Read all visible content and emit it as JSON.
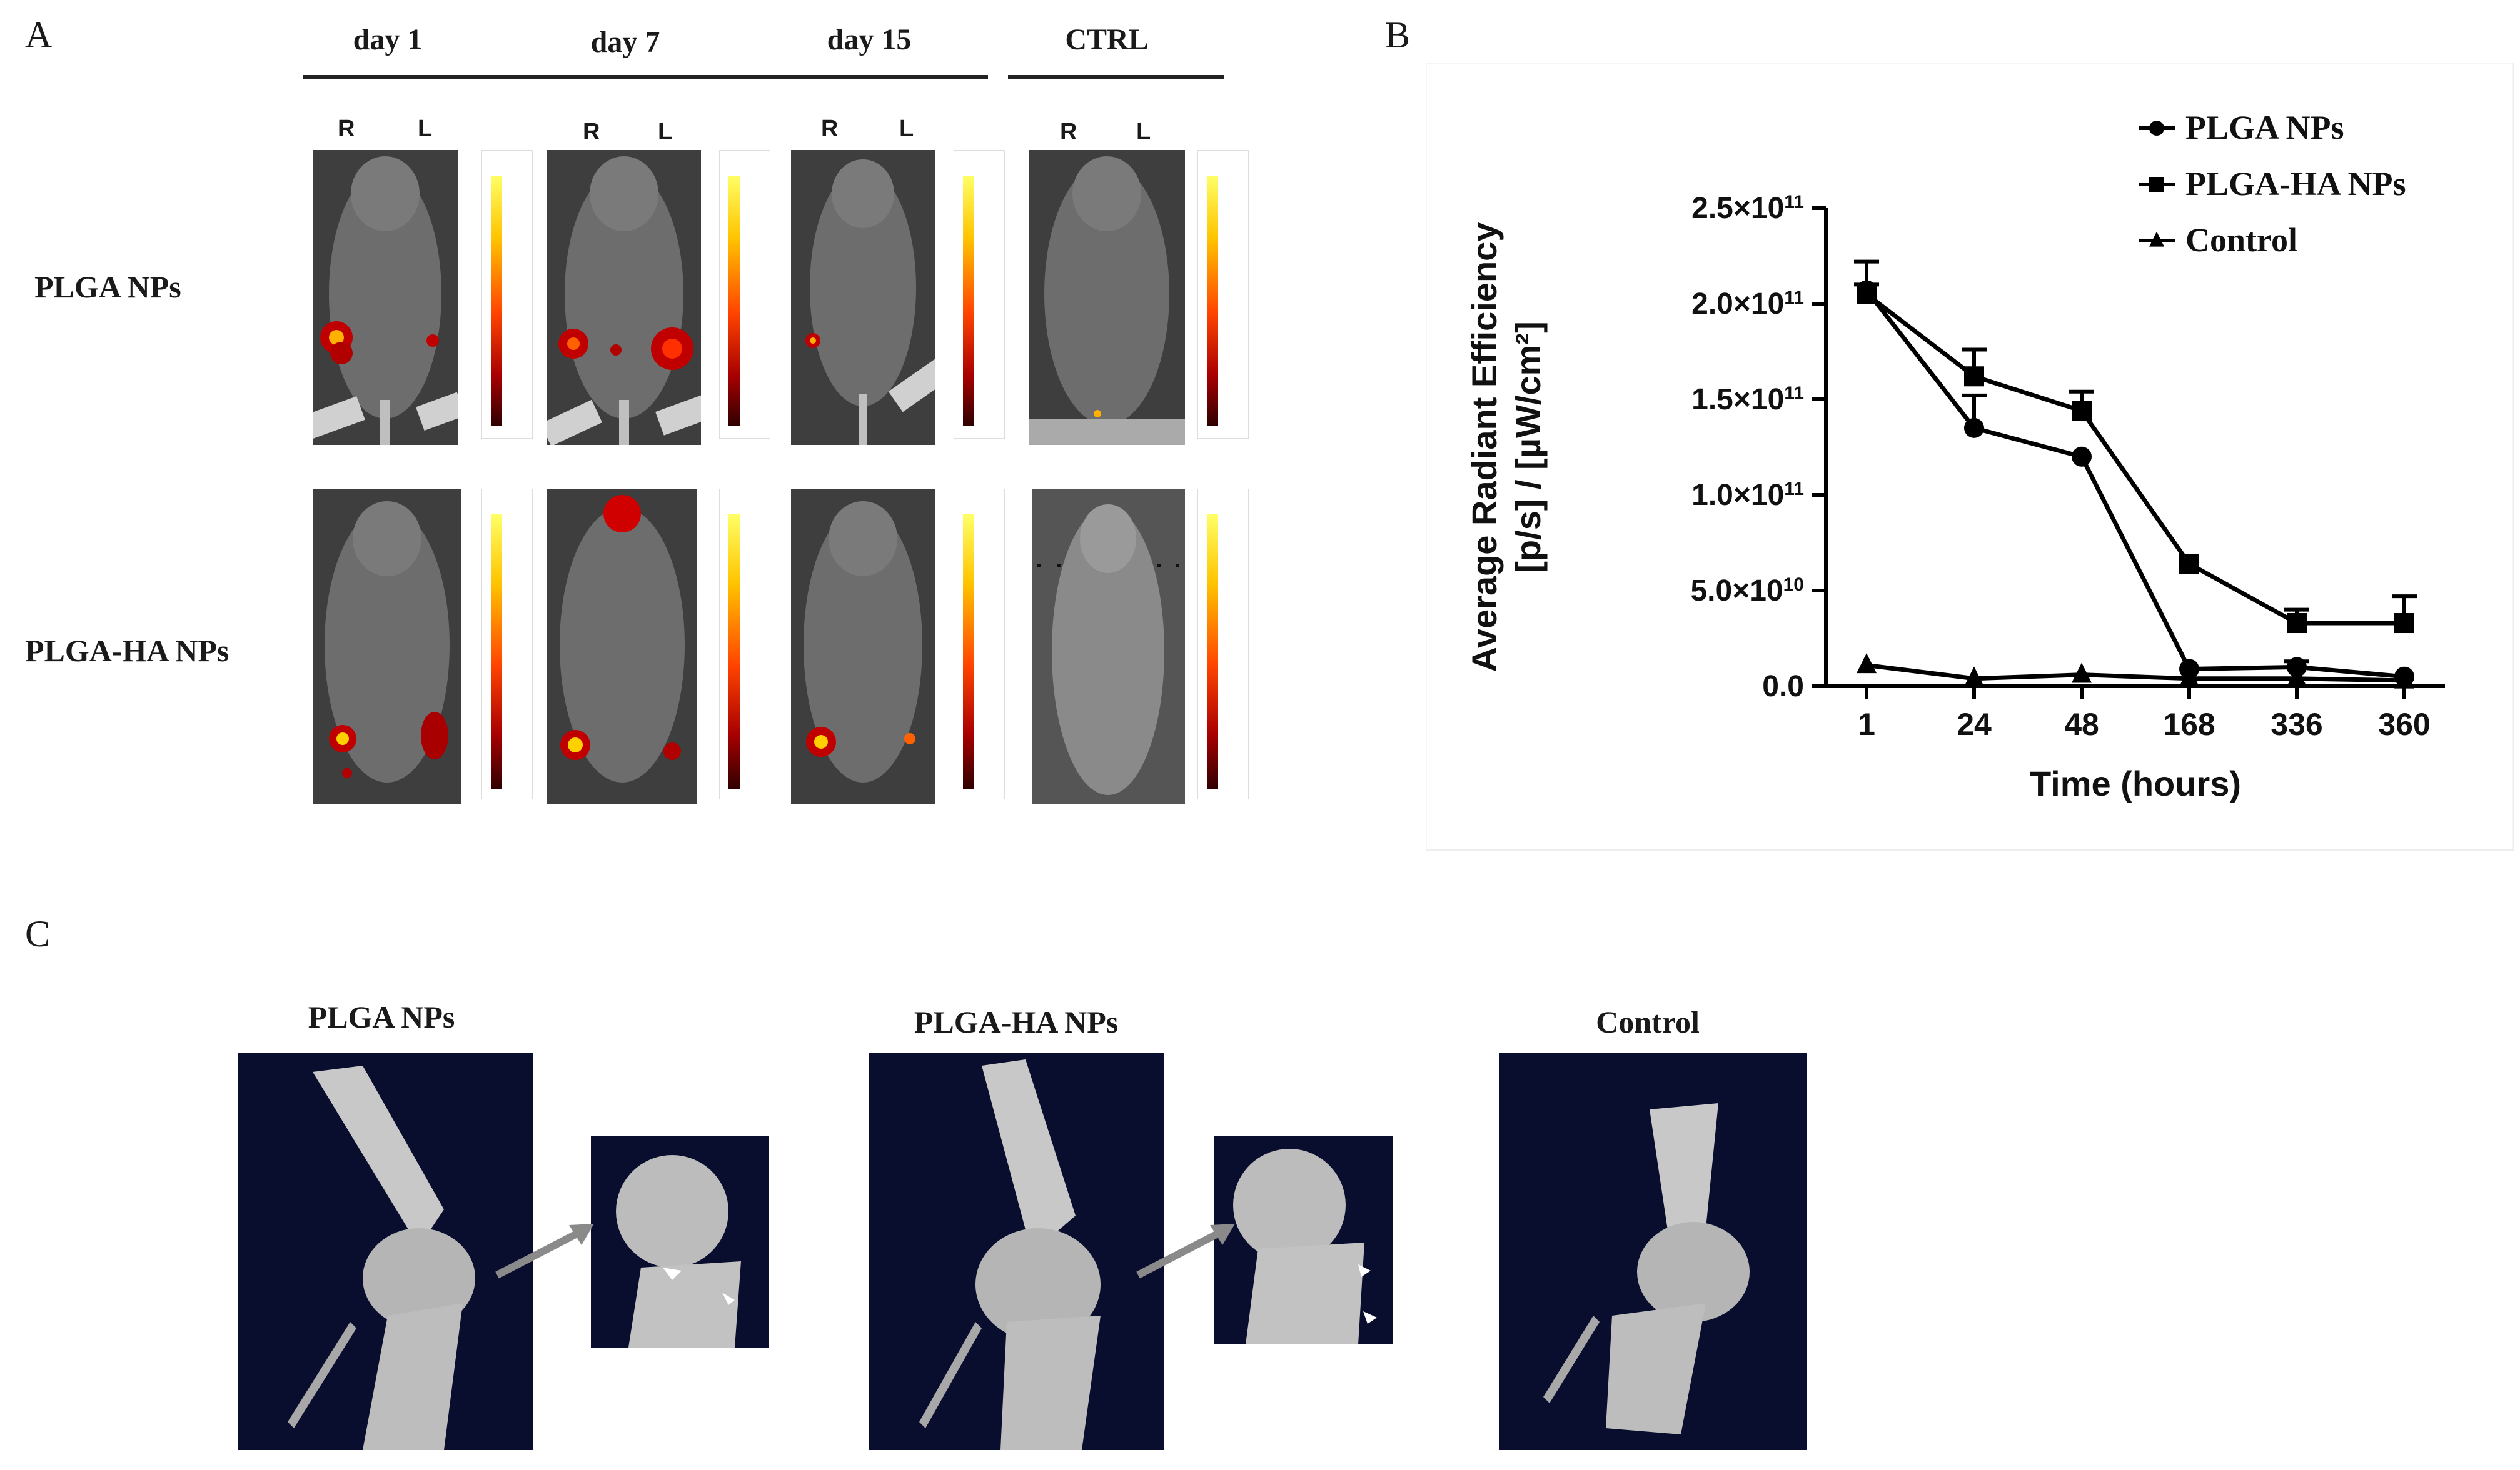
{
  "panels": {
    "a": "A",
    "b": "B",
    "c": "C"
  },
  "panel_a": {
    "columns": [
      "day 1",
      "day 7",
      "day 15",
      "CTRL"
    ],
    "sides": {
      "right": "R",
      "left": "L"
    },
    "rows": [
      "PLGA NPs",
      "PLGA-HA NPs"
    ]
  },
  "panel_c": {
    "labels": [
      "PLGA NPs",
      "PLGA-HA NPs",
      "Control"
    ]
  },
  "chart_data": {
    "type": "line",
    "xlabel": "Time (hours)",
    "ylabel_line1": "Average Radiant Efficiency",
    "ylabel_line2": "[p/s] / [µW/cm²]",
    "categories": [
      "1",
      "24",
      "48",
      "168",
      "336",
      "360"
    ],
    "y_ticks": [
      {
        "value": 0,
        "base": "0.0",
        "exp": ""
      },
      {
        "value": 50000000000,
        "base": "5.0×10",
        "exp": "10"
      },
      {
        "value": 100000000000,
        "base": "1.0×10",
        "exp": "11"
      },
      {
        "value": 150000000000,
        "base": "1.5×10",
        "exp": "11"
      },
      {
        "value": 200000000000,
        "base": "2.0×10",
        "exp": "11"
      },
      {
        "value": 250000000000,
        "base": "2.5×10",
        "exp": "11"
      }
    ],
    "ylim": [
      0,
      250000000000
    ],
    "legend_position": "top-right",
    "series": [
      {
        "name": "PLGA NPs",
        "marker": "circle",
        "values": [
          207000000000,
          135000000000,
          120000000000,
          9000000000,
          10000000000,
          5000000000
        ],
        "errors": [
          15000000000,
          17000000000,
          0,
          0,
          3000000000,
          0
        ]
      },
      {
        "name": "PLGA-HA NPs",
        "marker": "square",
        "values": [
          205000000000,
          162000000000,
          144000000000,
          64000000000,
          33000000000,
          33000000000
        ],
        "errors": [
          5000000000,
          14000000000,
          10000000000,
          0,
          7000000000,
          14000000000
        ]
      },
      {
        "name": "Control",
        "marker": "triangle",
        "values": [
          11000000000,
          4000000000,
          6000000000,
          4000000000,
          4000000000,
          3000000000
        ],
        "errors": [
          0,
          0,
          0,
          0,
          0,
          0
        ]
      }
    ]
  }
}
